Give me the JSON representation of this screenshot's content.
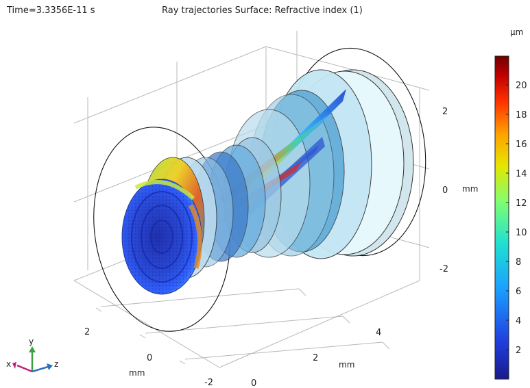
{
  "header": {
    "time_label": "Time=3.3356E-11 s",
    "plot_title": "Ray trajectories  Surface: Refractive index (1)"
  },
  "axes": {
    "z_ticks": [
      "2",
      "0",
      "-2"
    ],
    "z_unit": "mm",
    "x_ticks": [
      "2",
      "0",
      "-2"
    ],
    "x_unit": "mm",
    "y_ticks": [
      "0",
      "2",
      "4"
    ],
    "y_unit": "mm"
  },
  "triad": {
    "x": "x",
    "y": "y",
    "z": "z"
  },
  "colorbar": {
    "unit": "µm",
    "ticks": [
      "20",
      "18",
      "16",
      "14",
      "12",
      "10",
      "8",
      "6",
      "4",
      "2"
    ],
    "colors": [
      "#7f0000",
      "#c80000",
      "#ff4000",
      "#ffa000",
      "#e6e600",
      "#80ff80",
      "#20e0c0",
      "#00a0ff",
      "#2050e0",
      "#1a1a8c"
    ]
  }
}
